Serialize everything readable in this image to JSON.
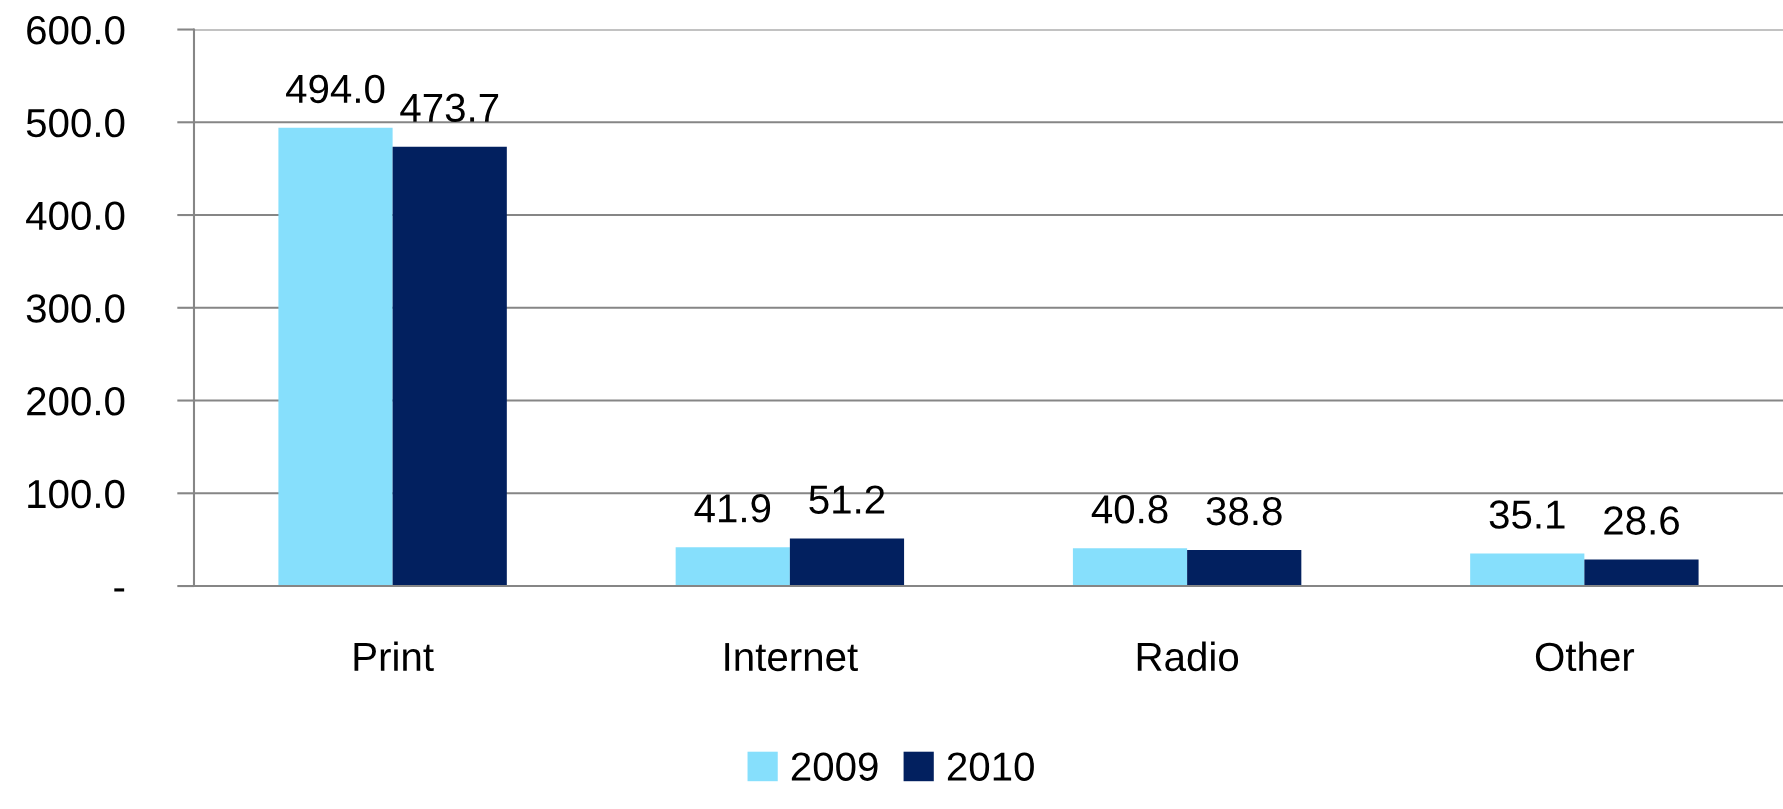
{
  "chart_data": {
    "type": "bar",
    "categories": [
      "Print",
      "Internet",
      "Radio",
      "Other"
    ],
    "series": [
      {
        "name": "2009",
        "color": "#86dffc",
        "values": [
          494.0,
          41.9,
          40.8,
          35.1
        ],
        "value_labels": [
          "494.0",
          "41.9",
          "40.8",
          "35.1"
        ]
      },
      {
        "name": "2010",
        "color": "#02205f",
        "values": [
          473.7,
          51.2,
          38.8,
          28.6
        ],
        "value_labels": [
          "473.7",
          "51.2",
          "38.8",
          "28.6"
        ]
      }
    ],
    "ylim": [
      0,
      600
    ],
    "yticks": [
      {
        "value": 0,
        "label": "-"
      },
      {
        "value": 100,
        "label": "100.0"
      },
      {
        "value": 200,
        "label": "200.0"
      },
      {
        "value": 300,
        "label": "300.0"
      },
      {
        "value": 400,
        "label": "400.0"
      },
      {
        "value": 500,
        "label": "500.0"
      },
      {
        "value": 600,
        "label": "600.0"
      }
    ],
    "grid": "y",
    "legend": "bottom"
  }
}
